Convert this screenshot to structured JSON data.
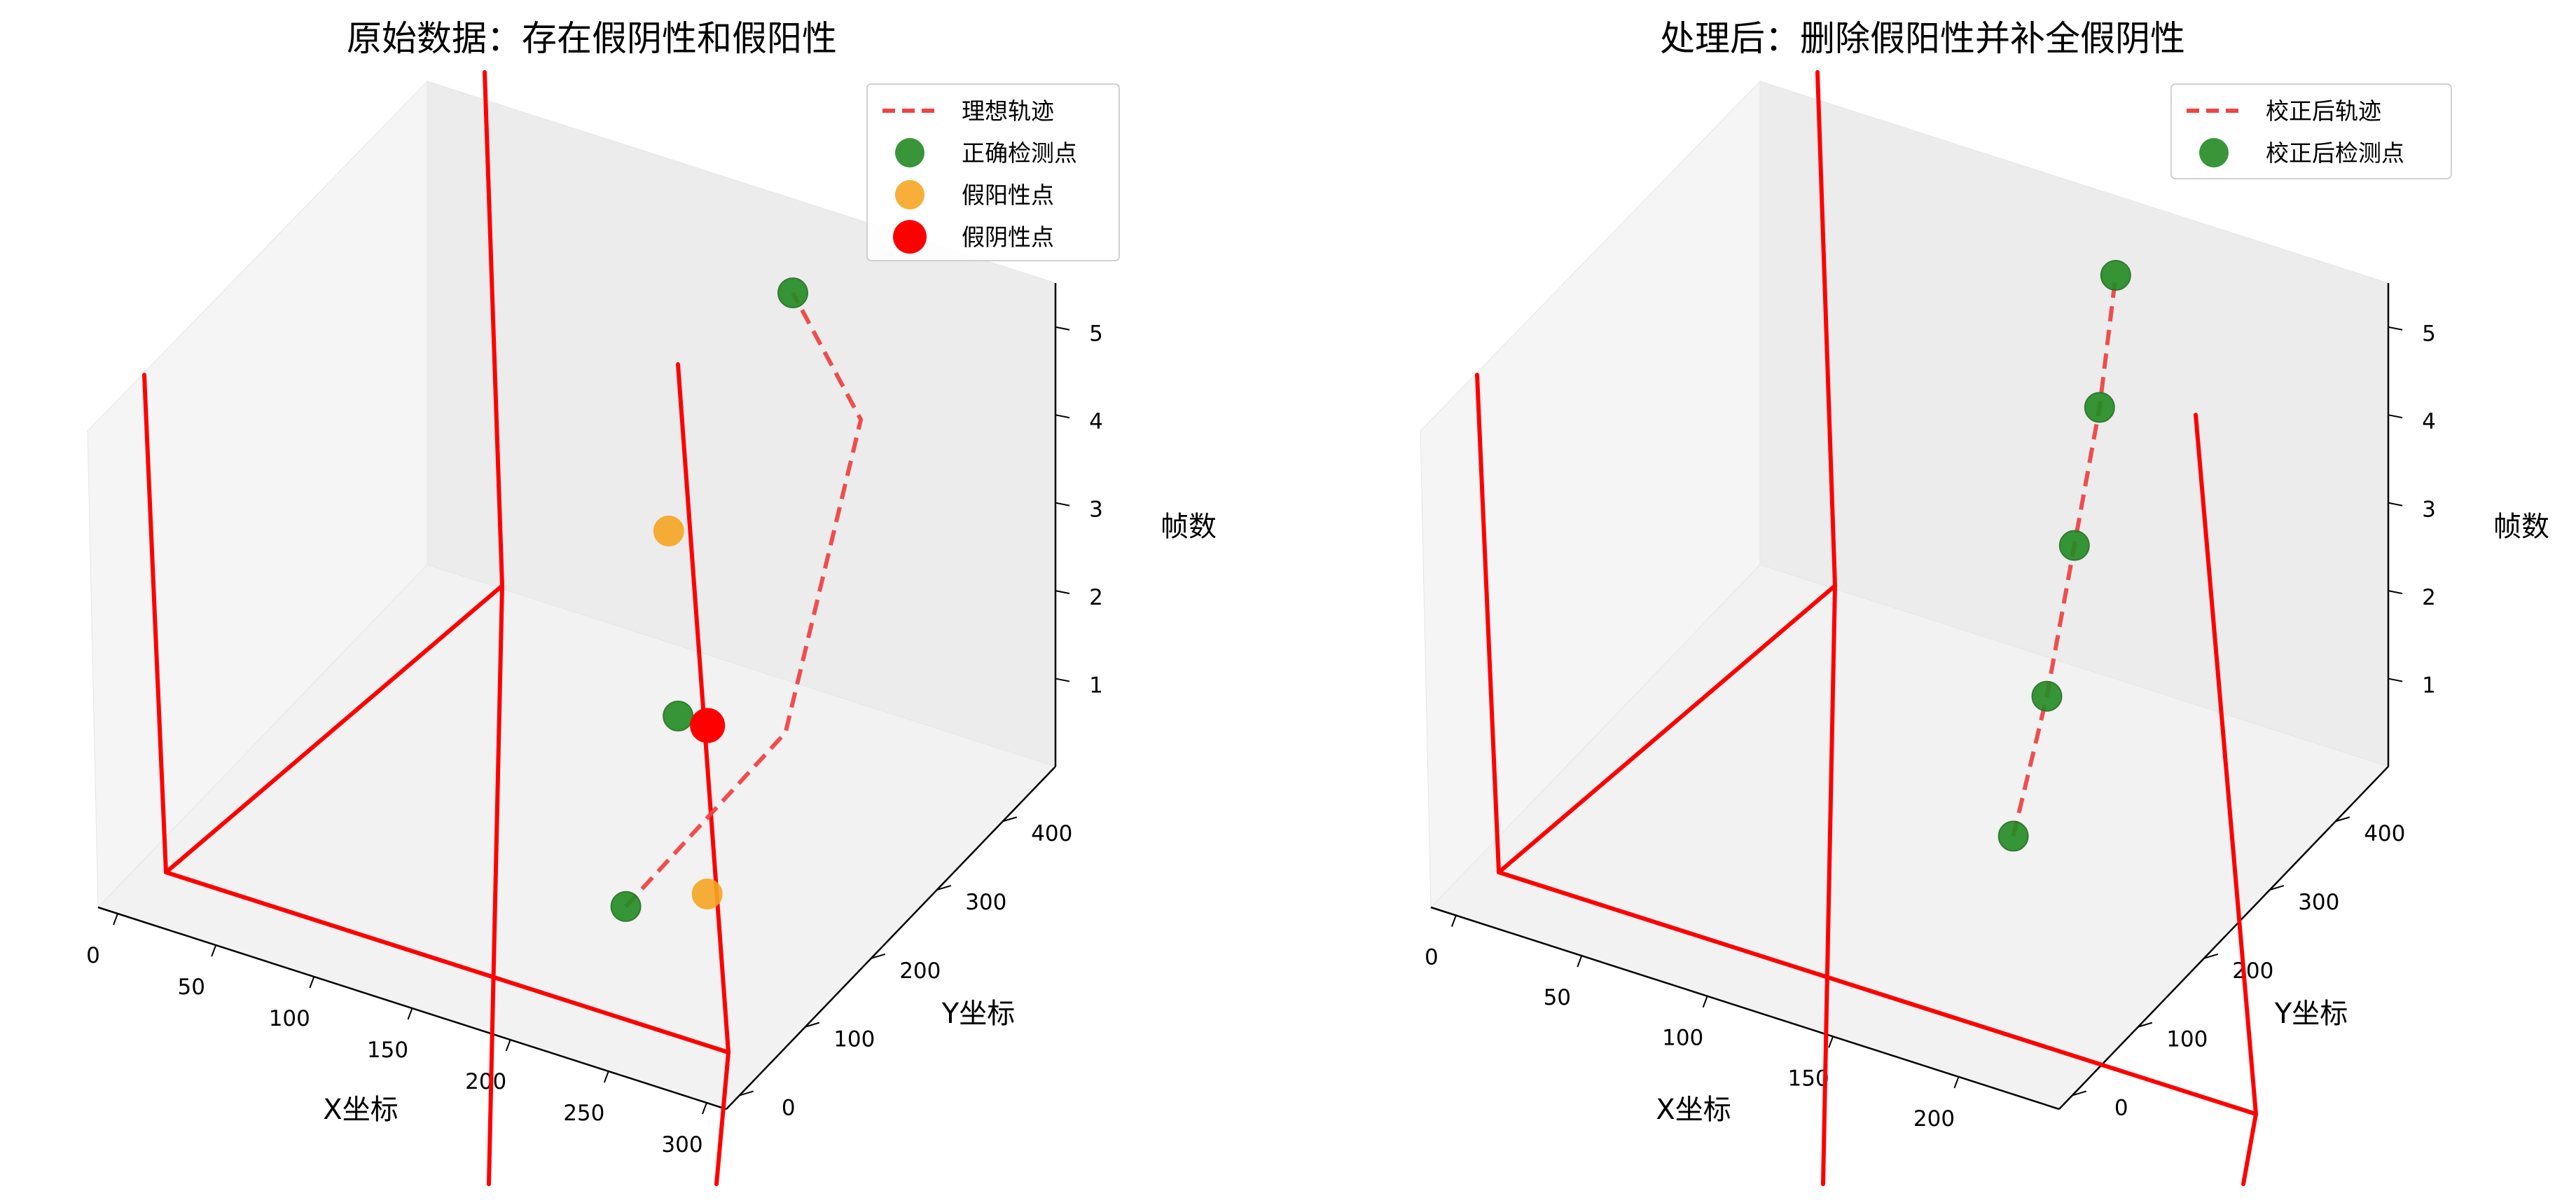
{
  "chart_data": [
    {
      "type": "scatter",
      "projection": "3d",
      "title": "原始数据：存在假阴性和假阳性",
      "xlabel": "X坐标",
      "ylabel": "Y坐标",
      "zlabel": "帧数",
      "xticks": [
        "0",
        "50",
        "100",
        "150",
        "200",
        "250",
        "300"
      ],
      "yticks": [
        "0",
        "100",
        "200",
        "300",
        "400"
      ],
      "zticks": [
        "1",
        "2",
        "3",
        "4",
        "5"
      ],
      "legend_position": "top-right",
      "series": [
        {
          "name": "理想轨迹",
          "kind": "line",
          "style": "dashed",
          "color": "#ef4444",
          "points": [
            [
              228,
              72,
              1
            ],
            [
              258,
              225,
              2
            ],
            [
              236,
              405,
              4
            ],
            [
              195,
              424,
              5
            ]
          ]
        },
        {
          "name": "正确检测点",
          "kind": "scatter",
          "color": "#228b22",
          "points": [
            [
              228,
              72,
              1
            ],
            [
              210,
              205,
              2
            ],
            [
              195,
              424,
              5
            ]
          ]
        },
        {
          "name": "假阳性点",
          "kind": "scatter",
          "color": "#f6a623",
          "points": [
            [
              255,
              115,
              1
            ],
            [
              170,
              310,
              3
            ]
          ]
        },
        {
          "name": "假阴性点",
          "kind": "scatter",
          "color": "#ff0000",
          "points": [
            [
              225,
              205,
              2
            ]
          ]
        }
      ]
    },
    {
      "type": "scatter",
      "projection": "3d",
      "title": "处理后：删除假阳性并补全假阴性",
      "xlabel": "X坐标",
      "ylabel": "Y坐标",
      "zlabel": "帧数",
      "xticks": [
        "0",
        "50",
        "100",
        "150",
        "200"
      ],
      "yticks": [
        "0",
        "100",
        "200",
        "300",
        "400"
      ],
      "zticks": [
        "1",
        "2",
        "3",
        "4",
        "5"
      ],
      "legend_position": "top-right",
      "series": [
        {
          "name": "校正后轨迹",
          "kind": "line",
          "style": "dashed",
          "color": "#ef4444",
          "points": [
            [
              172,
              170,
              1
            ],
            [
              167,
              240,
              2
            ],
            [
              157,
              320,
              3
            ],
            [
              150,
              385,
              4
            ],
            [
              142,
              440,
              5
            ]
          ]
        },
        {
          "name": "校正后检测点",
          "kind": "scatter",
          "color": "#228b22",
          "points": [
            [
              172,
              170,
              1
            ],
            [
              167,
              240,
              2
            ],
            [
              157,
              320,
              3
            ],
            [
              150,
              385,
              4
            ],
            [
              142,
              440,
              5
            ]
          ]
        }
      ]
    }
  ]
}
